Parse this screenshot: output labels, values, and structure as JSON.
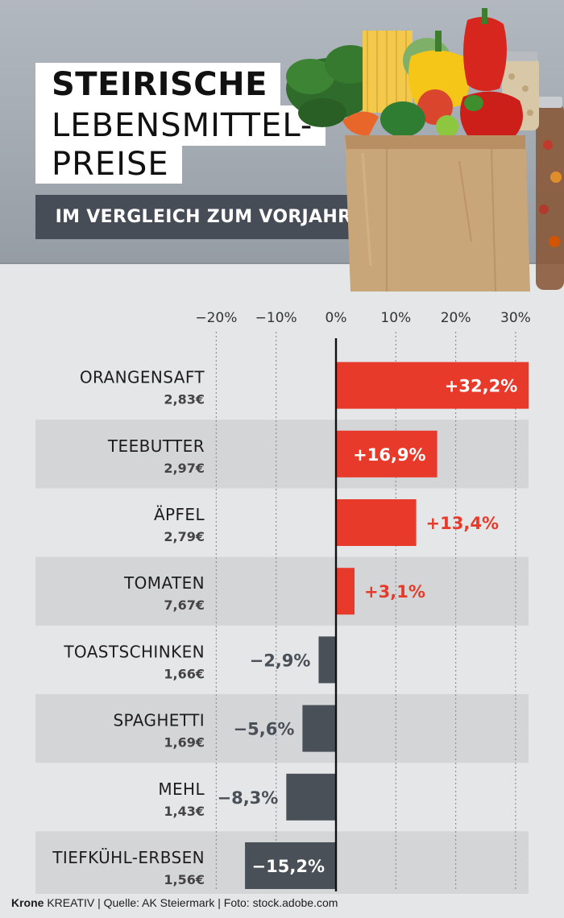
{
  "title": {
    "line1": "STEIRISCHE",
    "line2": "LEBENSMITTEL-",
    "line3": "PREISE"
  },
  "subtitle": "IM VERGLEICH ZUM VORJAHR",
  "colors": {
    "positive": "#e83a2b",
    "negative": "#4a5058",
    "positive_label": "#ffffff",
    "positive_label_outside": "#e83a2b",
    "negative_label": "#4a5058"
  },
  "chart_data": {
    "type": "bar",
    "orientation": "horizontal",
    "categories": [
      "ORANGENSAFT",
      "TEEBUTTER",
      "ÄPFEL",
      "TOMATEN",
      "TOASTSCHINKEN",
      "SPAGHETTI",
      "MEHL",
      "TIEFKÜHL-ERBSEN"
    ],
    "prices": [
      "2,83€",
      "2,97€",
      "2,79€",
      "7,67€",
      "1,66€",
      "1,69€",
      "1,43€",
      "1,56€"
    ],
    "values": [
      32.2,
      16.9,
      13.4,
      3.1,
      -2.9,
      -5.6,
      -8.3,
      -15.2
    ],
    "value_labels": [
      "+32,2%",
      "+16,9%",
      "+13,4%",
      "+3,1%",
      "−2,9%",
      "−5,6%",
      "−8,3%",
      "−15,2%"
    ],
    "xlim": [
      -20,
      32.5
    ],
    "ticks": [
      -20,
      -10,
      0,
      10,
      20,
      30
    ],
    "tick_labels": [
      "−20%",
      "−10%",
      "0%",
      "10%",
      "20%",
      "30%"
    ],
    "grid": true,
    "legend": "none"
  },
  "footer": {
    "brand": "Krone",
    "brand_suffix": " KREATIV",
    "source": " | Quelle: AK Steiermark | Foto: stock.adobe.com"
  }
}
